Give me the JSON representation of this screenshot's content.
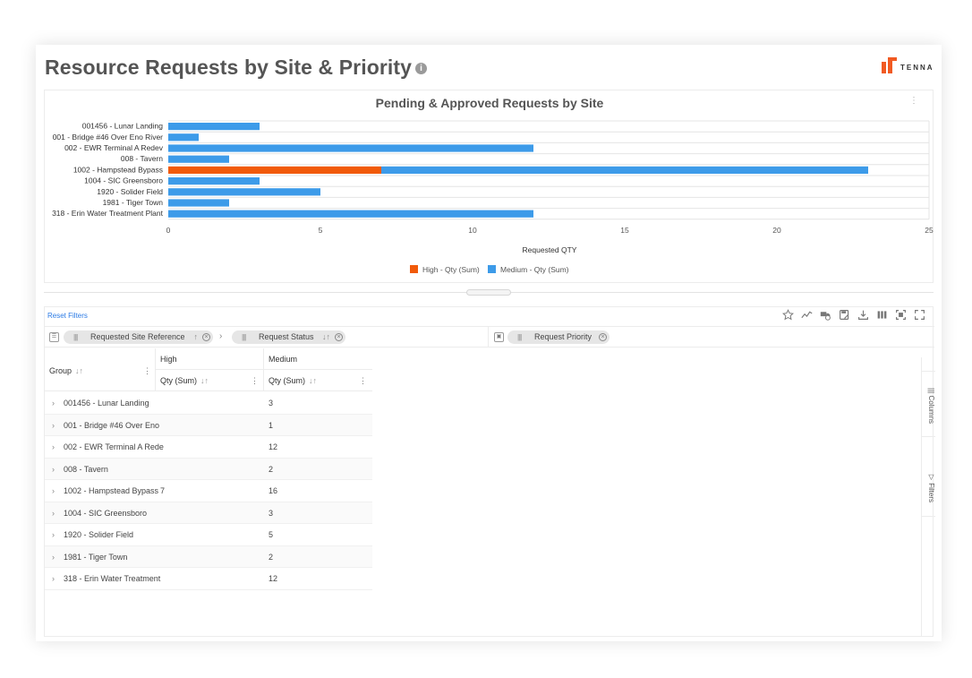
{
  "page": {
    "title": "Resource Requests by Site & Priority",
    "info_glyph": "i",
    "logo_text": "TENNA",
    "brand_color": "#f15a22"
  },
  "chart_data": {
    "type": "bar",
    "orientation": "horizontal",
    "stacked": true,
    "title": "Pending & Approved Requests by Site",
    "menu_glyph": "⋮",
    "categories": [
      "001456 - Lunar Landing",
      "001 - Bridge #46 Over Eno River",
      "002 - EWR Terminal A Redev",
      "008 - Tavern",
      "1002 - Hampstead Bypass",
      "1004 - SIC Greensboro",
      "1920 - Solider Field",
      "1981 - Tiger Town",
      "318 - Erin Water Treatment Plant"
    ],
    "series": [
      {
        "name": "High - Qty (Sum)",
        "color": "#f15a0a",
        "values": [
          0,
          0,
          0,
          0,
          7,
          0,
          0,
          0,
          0
        ]
      },
      {
        "name": "Medium - Qty (Sum)",
        "color": "#3d9be9",
        "values": [
          3,
          1,
          12,
          2,
          16,
          3,
          5,
          2,
          12
        ]
      }
    ],
    "xlabel": "Requested QTY",
    "ylabel": "",
    "xlim": [
      0,
      25
    ],
    "xticks": [
      0,
      5,
      10,
      15,
      20,
      25
    ],
    "grid": true,
    "legend_position": "bottom"
  },
  "grid": {
    "reset_filters": "Reset Filters",
    "toolbar": [
      "star-icon",
      "trend-icon",
      "truck-clock-icon",
      "save-report-icon",
      "download-icon",
      "columns-icon",
      "fit-icon",
      "expand-icon"
    ],
    "row_group_chips": [
      {
        "label": "Requested Site Reference",
        "sort": "↑"
      },
      {
        "label": "Request Status",
        "sort": "↓↑"
      }
    ],
    "column_chips": [
      {
        "label": "Request Priority"
      }
    ],
    "header": {
      "group": "Group",
      "high": "High",
      "medium": "Medium",
      "qty_sum": "Qty (Sum)",
      "sort_glyph": "↓↑",
      "menu_glyph": "⋮"
    },
    "rows": [
      {
        "name": "001456 - Lunar Landing",
        "high": "",
        "medium": "3"
      },
      {
        "name": "001 - Bridge #46 Over Eno",
        "high": "",
        "medium": "1"
      },
      {
        "name": "002 - EWR Terminal A Rede",
        "high": "",
        "medium": "12"
      },
      {
        "name": "008 - Tavern",
        "high": "",
        "medium": "2"
      },
      {
        "name": "1002 - Hampstead Bypass",
        "high": "7",
        "medium": "16"
      },
      {
        "name": "1004 - SIC Greensboro",
        "high": "",
        "medium": "3"
      },
      {
        "name": "1920 - Solider Field",
        "high": "",
        "medium": "5"
      },
      {
        "name": "1981 - Tiger Town",
        "high": "",
        "medium": "2"
      },
      {
        "name": "318 - Erin Water Treatment",
        "high": "",
        "medium": "12"
      }
    ],
    "side_tabs": {
      "columns": "Columns",
      "filters": "Filters"
    }
  }
}
